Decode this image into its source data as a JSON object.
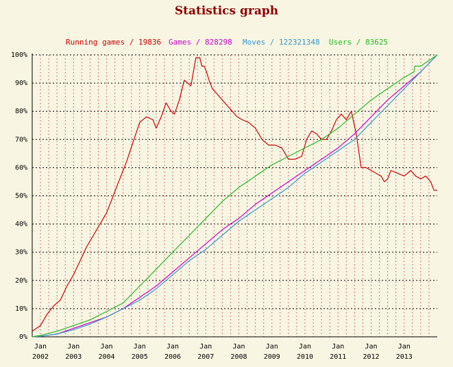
{
  "page": {
    "title": "Statistics graph",
    "title_color": "#8b0000",
    "background": "#f8f5e2"
  },
  "chart_data": {
    "type": "line",
    "title": "Statistics graph",
    "xlabel": "",
    "ylabel": "",
    "ylim": [
      0,
      100
    ],
    "y_ticks": [
      "0%",
      "10%",
      "20%",
      "30%",
      "40%",
      "50%",
      "60%",
      "70%",
      "80%",
      "90%",
      "100%"
    ],
    "x_ticks": [
      {
        "top": "Jan",
        "bottom": "2002",
        "year": 2002
      },
      {
        "top": "Jan",
        "bottom": "2003",
        "year": 2003
      },
      {
        "top": "Jan",
        "bottom": "2004",
        "year": 2004
      },
      {
        "top": "Jan",
        "bottom": "2005",
        "year": 2005
      },
      {
        "top": "Jan",
        "bottom": "2006",
        "year": 2006
      },
      {
        "top": "Jan",
        "bottom": "2007",
        "year": 2007
      },
      {
        "top": "Jan",
        "bottom": "2008",
        "year": 2008
      },
      {
        "top": "Jan",
        "bottom": "2009",
        "year": 2009
      },
      {
        "top": "Jan",
        "bottom": "2010",
        "year": 2010
      },
      {
        "top": "Jan",
        "bottom": "2011",
        "year": 2011
      },
      {
        "top": "Jan",
        "bottom": "2012",
        "year": 2012
      },
      {
        "top": "Jan",
        "bottom": "2013",
        "year": 2013
      }
    ],
    "xlim": [
      2001.75,
      2014.0
    ],
    "grid": true,
    "legend_position": "top",
    "series": [
      {
        "name": "Running games",
        "label": "Running games / 19836",
        "color": "#cc0000",
        "x": [
          2001.75,
          2002.0,
          2002.2,
          2002.4,
          2002.6,
          2002.8,
          2003.0,
          2003.2,
          2003.4,
          2003.6,
          2003.8,
          2004.0,
          2004.2,
          2004.4,
          2004.6,
          2004.8,
          2005.0,
          2005.2,
          2005.4,
          2005.5,
          2005.65,
          2005.8,
          2005.95,
          2006.05,
          2006.2,
          2006.35,
          2006.55,
          2006.7,
          2006.82,
          2006.88,
          2006.95,
          2007.02,
          2007.1,
          2007.2,
          2007.35,
          2007.5,
          2007.65,
          2007.8,
          2007.95,
          2008.1,
          2008.3,
          2008.5,
          2008.7,
          2008.9,
          2009.1,
          2009.3,
          2009.5,
          2009.7,
          2009.9,
          2010.05,
          2010.2,
          2010.35,
          2010.5,
          2010.65,
          2010.8,
          2010.95,
          2011.1,
          2011.25,
          2011.4,
          2011.55,
          2011.7,
          2011.85,
          2012.0,
          2012.15,
          2012.3,
          2012.4,
          2012.5,
          2012.6,
          2012.8,
          2013.0,
          2013.2,
          2013.35,
          2013.5,
          2013.65,
          2013.8,
          2013.9,
          2014.0
        ],
        "values": [
          2,
          4,
          8,
          11,
          13,
          18,
          22,
          27,
          32,
          36,
          40,
          44,
          50,
          56,
          62,
          69,
          76,
          78,
          77,
          74,
          78,
          83,
          80,
          79,
          84,
          91,
          89,
          99,
          99,
          96,
          96,
          94,
          91,
          88,
          86,
          84,
          82,
          80,
          78,
          77,
          76,
          74,
          70,
          68,
          68,
          67,
          63,
          63,
          64,
          70,
          73,
          72,
          70,
          70,
          73,
          77,
          79,
          77,
          80,
          72,
          60,
          60,
          59,
          58,
          57,
          55,
          56,
          59,
          58,
          57,
          59,
          57,
          56,
          57,
          55,
          52,
          52
        ]
      },
      {
        "name": "Games",
        "label": "Games / 828298",
        "color": "#cc00cc",
        "x": [
          2001.75,
          2002.0,
          2002.5,
          2003.0,
          2003.5,
          2004.0,
          2004.5,
          2005.0,
          2005.5,
          2006.0,
          2006.5,
          2007.0,
          2007.5,
          2008.0,
          2008.5,
          2009.0,
          2009.5,
          2010.0,
          2010.5,
          2011.0,
          2011.5,
          2012.0,
          2012.5,
          2013.0,
          2013.5,
          2014.0
        ],
        "values": [
          0,
          0.2,
          1,
          3,
          5,
          7,
          10,
          14,
          18,
          23,
          28,
          33,
          38,
          42,
          47,
          51,
          55,
          59,
          63,
          67,
          72,
          78,
          84,
          89,
          94,
          100
        ]
      },
      {
        "name": "Moves",
        "label": "Moves / 122321348",
        "color": "#3399cc",
        "x": [
          2001.75,
          2002.0,
          2002.5,
          2003.0,
          2003.5,
          2004.0,
          2004.5,
          2005.0,
          2005.5,
          2006.0,
          2006.5,
          2007.0,
          2007.5,
          2008.0,
          2008.5,
          2009.0,
          2009.5,
          2010.0,
          2010.5,
          2011.0,
          2011.5,
          2012.0,
          2012.5,
          2013.0,
          2013.5,
          2014.0
        ],
        "values": [
          0,
          0.2,
          1,
          2.5,
          4.5,
          7,
          10,
          13,
          17,
          22,
          27,
          31,
          36,
          41,
          45,
          49,
          53,
          58,
          62,
          66,
          70,
          76,
          82,
          88,
          94,
          100
        ]
      },
      {
        "name": "Users",
        "label": "Users / 83625",
        "color": "#22bb22",
        "x": [
          2001.75,
          2002.0,
          2002.5,
          2003.0,
          2003.5,
          2004.0,
          2004.5,
          2005.0,
          2005.5,
          2006.0,
          2006.5,
          2007.0,
          2007.5,
          2008.0,
          2008.5,
          2009.0,
          2009.5,
          2010.0,
          2010.5,
          2011.0,
          2011.5,
          2012.0,
          2012.5,
          2013.0,
          2013.3,
          2013.32,
          2013.5,
          2014.0
        ],
        "values": [
          0,
          0.5,
          2,
          4,
          6,
          9,
          12,
          18,
          24,
          30,
          36,
          42,
          48,
          53,
          57,
          61,
          64,
          67,
          70,
          74,
          79,
          84,
          88,
          92,
          94,
          96,
          96,
          100
        ]
      }
    ]
  }
}
